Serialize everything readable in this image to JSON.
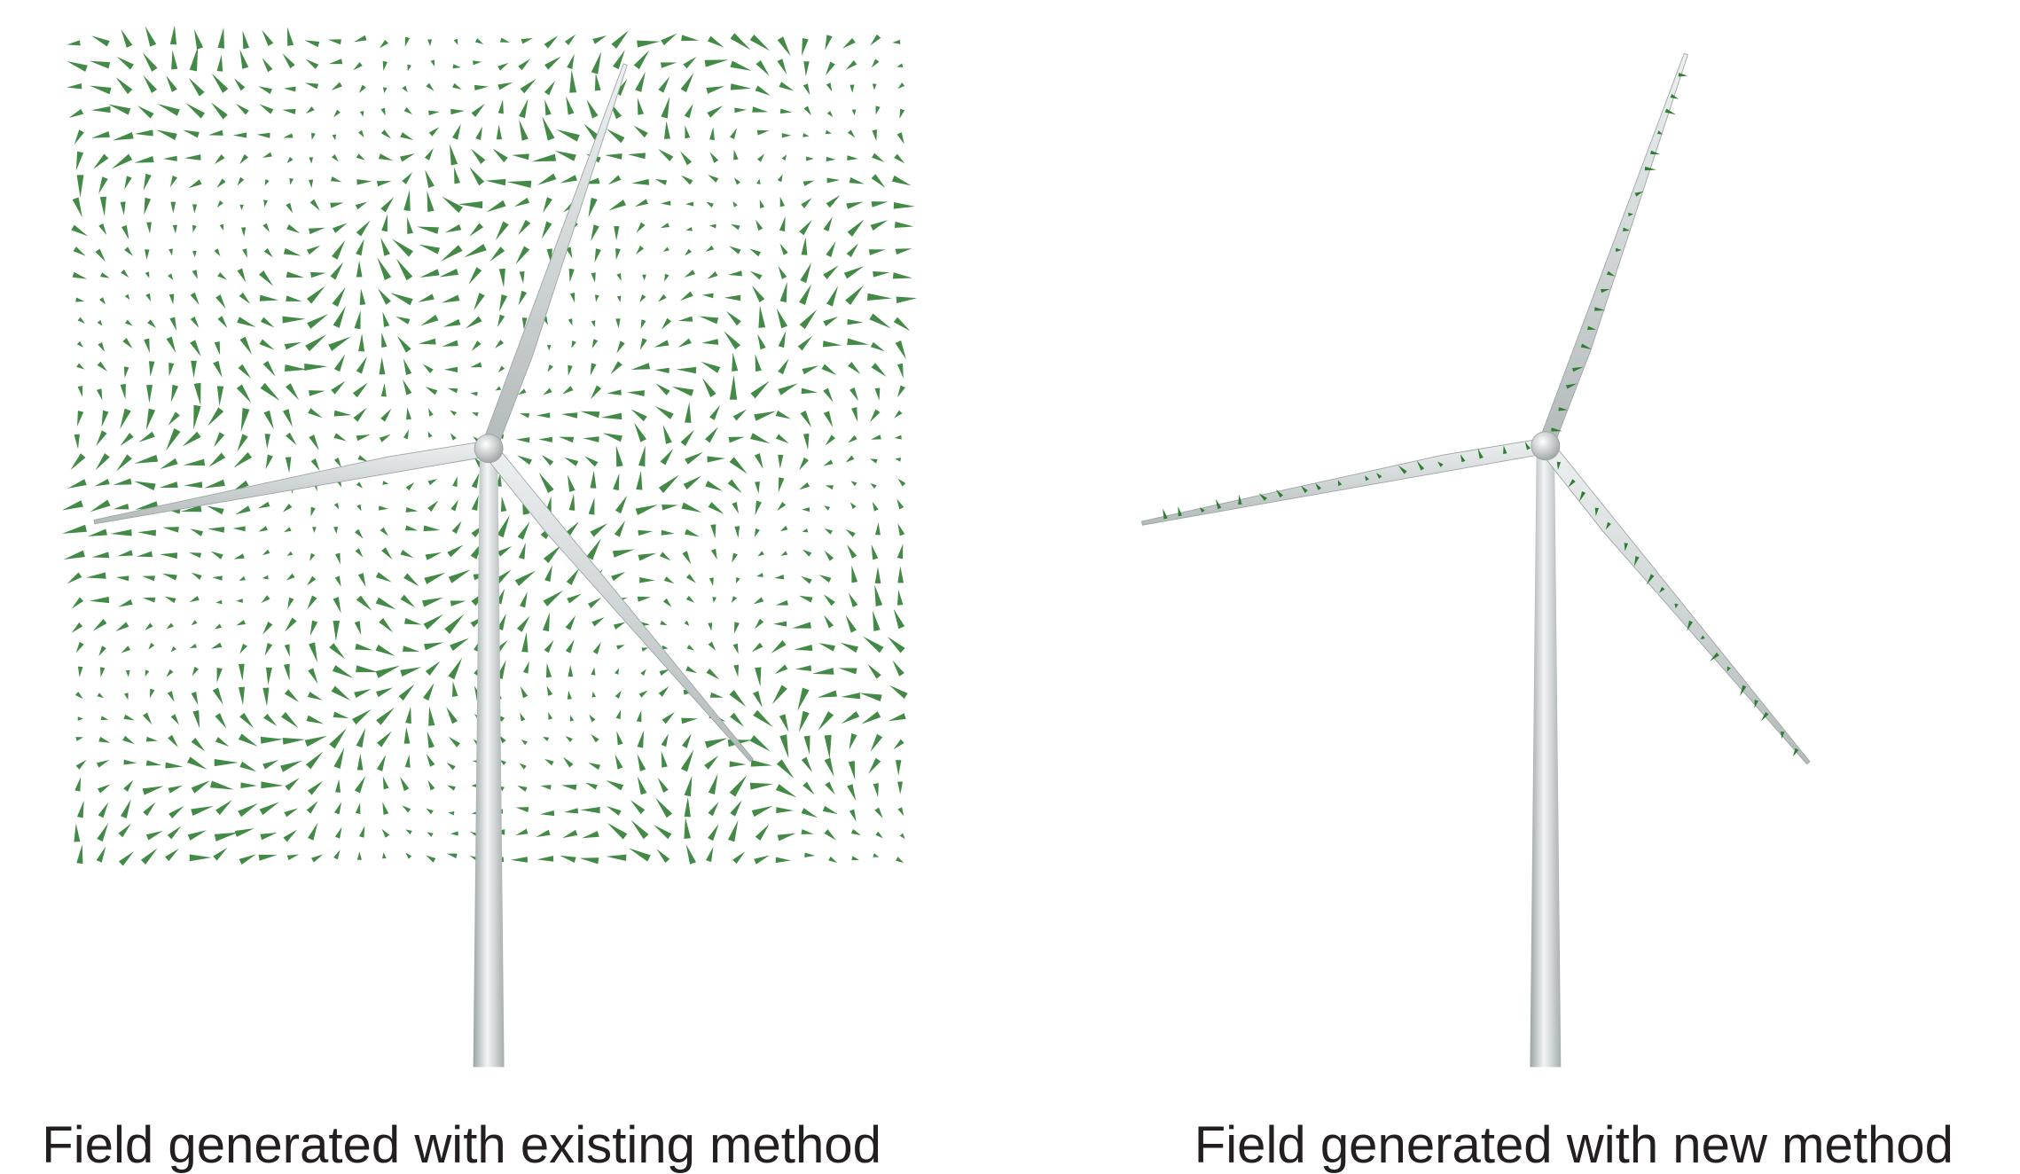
{
  "panels": [
    {
      "caption": "Field generated with existing method"
    },
    {
      "caption": "Field generated with new method"
    }
  ]
}
